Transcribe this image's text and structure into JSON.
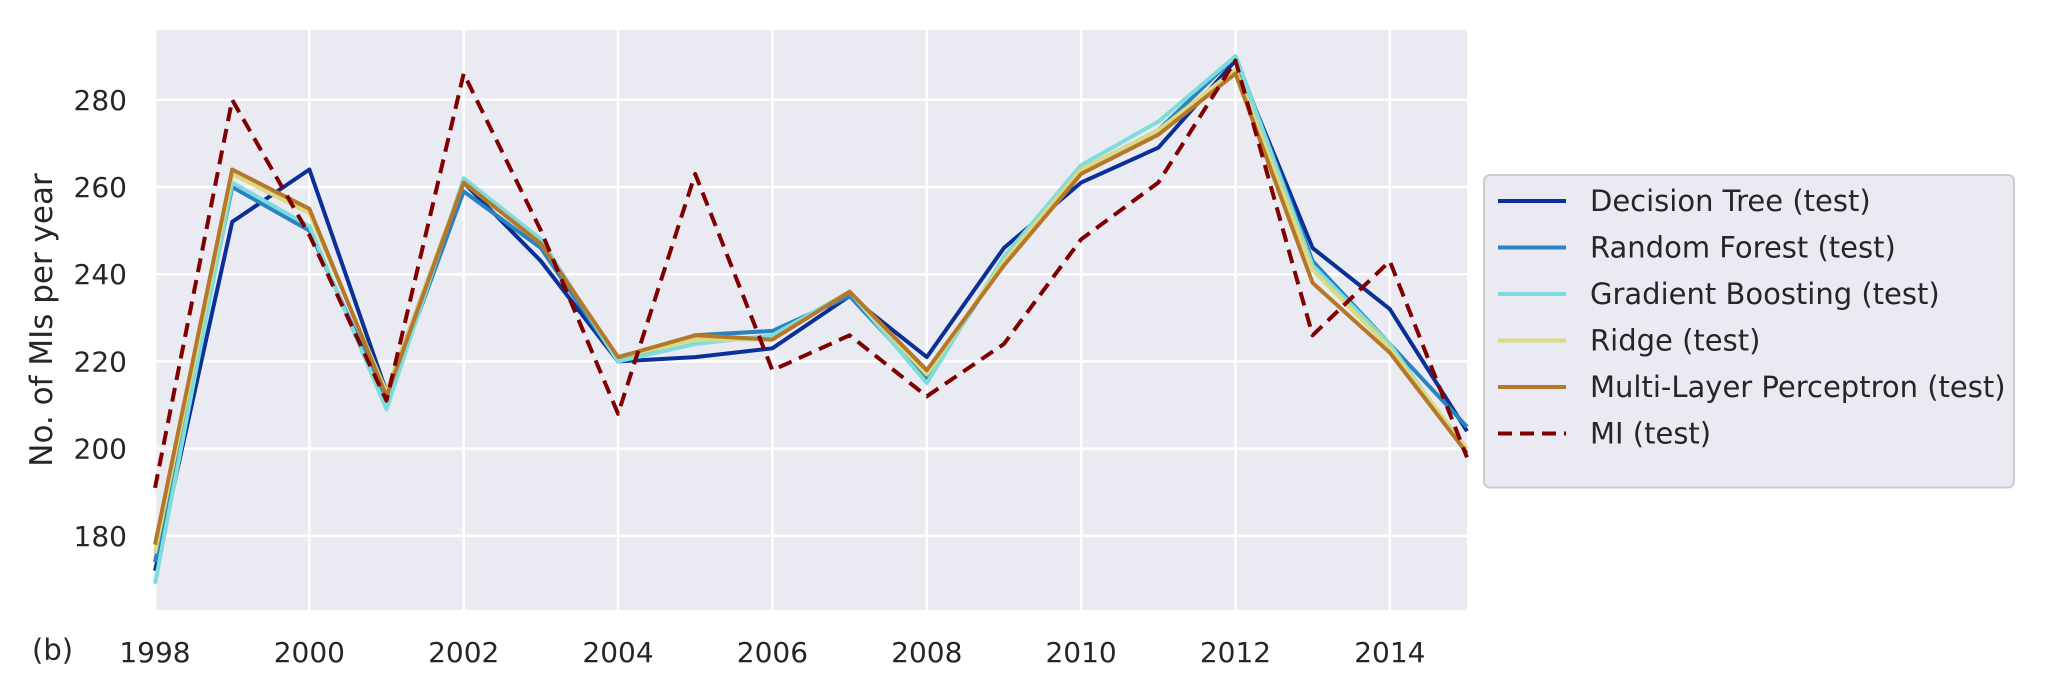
{
  "panel_label": "(b)",
  "colors": {
    "plot_background": "#EAEAF2",
    "grid": "#FFFFFF",
    "legend_background": "#EAEAF2",
    "legend_border": "#CCCCCC"
  },
  "chart_data": {
    "type": "line",
    "title": "",
    "xlabel": "",
    "ylabel": "No. of MIs per year",
    "xlim": [
      1998,
      2015
    ],
    "ylim": [
      163,
      296
    ],
    "xticks": [
      1998,
      2000,
      2002,
      2004,
      2006,
      2008,
      2010,
      2012,
      2014
    ],
    "yticks": [
      180,
      200,
      220,
      240,
      260,
      280
    ],
    "grid": true,
    "legend_position": "right",
    "x": [
      1998,
      1999,
      2000,
      2001,
      2002,
      2003,
      2004,
      2005,
      2006,
      2007,
      2008,
      2009,
      2010,
      2011,
      2012,
      2013,
      2014,
      2015
    ],
    "series": [
      {
        "name": "Decision Tree (test)",
        "color": "#0A2F96",
        "dash": "solid",
        "values": [
          172,
          252,
          264,
          213,
          261,
          243,
          220,
          221,
          223,
          235,
          221,
          246,
          261,
          269,
          289,
          246,
          232,
          204
        ]
      },
      {
        "name": "Random Forest (test)",
        "color": "#2A82C0",
        "dash": "solid",
        "values": [
          174,
          260,
          250,
          211,
          259,
          246,
          220,
          226,
          227,
          235,
          216,
          243,
          264,
          273,
          290,
          243,
          224,
          205
        ]
      },
      {
        "name": "Gradient Boosting (test)",
        "color": "#7FDCDC",
        "dash": "solid",
        "values": [
          169,
          261,
          251,
          209,
          262,
          248,
          220,
          224,
          226,
          236,
          215,
          244,
          265,
          275,
          290,
          242,
          224,
          199
        ]
      },
      {
        "name": "Ridge (test)",
        "color": "#DBD982",
        "dash": "solid",
        "values": [
          176,
          263,
          254,
          213,
          261,
          247,
          221,
          225,
          225,
          236,
          217,
          243,
          264,
          273,
          287,
          241,
          223,
          200
        ]
      },
      {
        "name": "Multi-Layer Perceptron (test)",
        "color": "#B5782A",
        "dash": "solid",
        "values": [
          178,
          264,
          255,
          212,
          261,
          247,
          221,
          226,
          225,
          236,
          218,
          242,
          263,
          272,
          286,
          238,
          222,
          199
        ]
      },
      {
        "name": "MI (test)",
        "color": "#800000",
        "dash": "dashed",
        "values": [
          191,
          280,
          249,
          211,
          286,
          250,
          208,
          263,
          218,
          226,
          212,
          224,
          248,
          261,
          289,
          226,
          243,
          198
        ]
      }
    ]
  }
}
